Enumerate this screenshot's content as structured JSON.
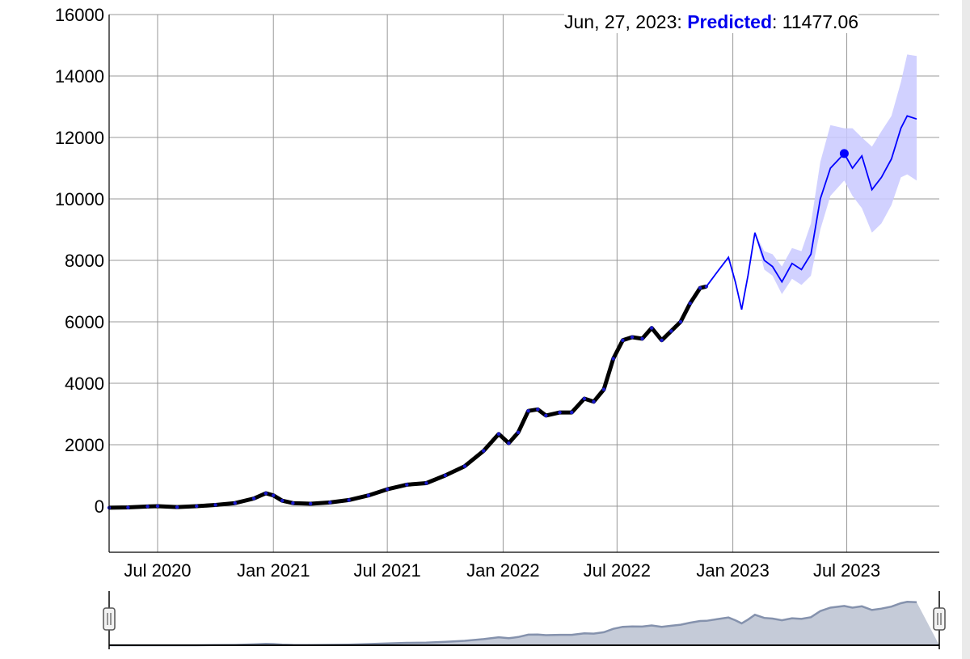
{
  "tooltip": {
    "date": "Jun, 27, 2023",
    "series_label": "Predicted",
    "value": "11477.06",
    "series_color": "#0000ee"
  },
  "colors": {
    "observed_line": "#000000",
    "observed_points": "#1a1acc",
    "predicted_line": "#0000ff",
    "interval_band": "#c9c9ff",
    "grid": "#999999",
    "navigator_fill": "#c5cbd8",
    "navigator_line": "#8592ad"
  },
  "chart_data": {
    "type": "line",
    "title": "",
    "xlabel": "",
    "ylabel": "",
    "x_range": [
      "2020-04-15",
      "2023-11-25"
    ],
    "ylim": [
      -1500,
      16000
    ],
    "y_ticks": [
      0,
      2000,
      4000,
      6000,
      8000,
      10000,
      12000,
      14000,
      16000
    ],
    "x_ticks": [
      {
        "date": "2020-07-01",
        "label": "Jul 2020"
      },
      {
        "date": "2021-01-01",
        "label": "Jan 2021"
      },
      {
        "date": "2021-07-01",
        "label": "Jul 2021"
      },
      {
        "date": "2022-01-01",
        "label": "Jan 2022"
      },
      {
        "date": "2022-07-01",
        "label": "Jul 2022"
      },
      {
        "date": "2023-01-01",
        "label": "Jan 2023"
      },
      {
        "date": "2023-07-01",
        "label": "Jul 2023"
      }
    ],
    "grid": true,
    "highlight_point": {
      "x": "2023-06-27",
      "y": 11477.06
    },
    "series": [
      {
        "kind": "observed",
        "points": [
          [
            "2020-04-15",
            -50
          ],
          [
            "2020-05-15",
            -40
          ],
          [
            "2020-06-15",
            -10
          ],
          [
            "2020-07-01",
            0
          ],
          [
            "2020-08-01",
            -30
          ],
          [
            "2020-09-01",
            0
          ],
          [
            "2020-10-01",
            40
          ],
          [
            "2020-11-01",
            100
          ],
          [
            "2020-12-01",
            250
          ],
          [
            "2020-12-20",
            420
          ],
          [
            "2021-01-01",
            350
          ],
          [
            "2021-01-15",
            180
          ],
          [
            "2021-02-01",
            100
          ],
          [
            "2021-03-01",
            80
          ],
          [
            "2021-04-01",
            120
          ],
          [
            "2021-05-01",
            200
          ],
          [
            "2021-06-01",
            350
          ],
          [
            "2021-07-01",
            550
          ],
          [
            "2021-08-01",
            700
          ],
          [
            "2021-09-01",
            750
          ],
          [
            "2021-10-01",
            1000
          ],
          [
            "2021-11-01",
            1300
          ],
          [
            "2021-12-01",
            1800
          ],
          [
            "2021-12-25",
            2350
          ],
          [
            "2022-01-10",
            2050
          ],
          [
            "2022-01-25",
            2400
          ],
          [
            "2022-02-10",
            3100
          ],
          [
            "2022-02-25",
            3150
          ],
          [
            "2022-03-10",
            2950
          ],
          [
            "2022-04-01",
            3050
          ],
          [
            "2022-04-20",
            3050
          ],
          [
            "2022-05-10",
            3500
          ],
          [
            "2022-05-25",
            3400
          ],
          [
            "2022-06-10",
            3800
          ],
          [
            "2022-06-25",
            4800
          ],
          [
            "2022-07-10",
            5400
          ],
          [
            "2022-07-25",
            5500
          ],
          [
            "2022-08-10",
            5450
          ],
          [
            "2022-08-25",
            5800
          ],
          [
            "2022-09-10",
            5400
          ],
          [
            "2022-09-25",
            5700
          ],
          [
            "2022-10-10",
            6000
          ],
          [
            "2022-10-25",
            6600
          ],
          [
            "2022-11-10",
            7100
          ],
          [
            "2022-11-20",
            7150
          ]
        ]
      },
      {
        "kind": "predicted",
        "points": [
          [
            "2022-11-20",
            7150
          ],
          [
            "2022-12-10",
            7700
          ],
          [
            "2022-12-25",
            8100
          ],
          [
            "2023-01-05",
            7300
          ],
          [
            "2023-01-15",
            6400
          ],
          [
            "2023-01-25",
            7500
          ],
          [
            "2023-02-05",
            8900
          ],
          [
            "2023-02-20",
            8000
          ],
          [
            "2023-03-05",
            7800
          ],
          [
            "2023-03-20",
            7300
          ],
          [
            "2023-04-05",
            7900
          ],
          [
            "2023-04-20",
            7700
          ],
          [
            "2023-05-05",
            8200
          ],
          [
            "2023-05-20",
            10000
          ],
          [
            "2023-06-05",
            11000
          ],
          [
            "2023-06-27",
            11477.06
          ],
          [
            "2023-07-10",
            11000
          ],
          [
            "2023-07-25",
            11400
          ],
          [
            "2023-08-10",
            10300
          ],
          [
            "2023-08-25",
            10700
          ],
          [
            "2023-09-10",
            11300
          ],
          [
            "2023-09-25",
            12300
          ],
          [
            "2023-10-05",
            12700
          ],
          [
            "2023-10-20",
            12600
          ]
        ],
        "upper": [
          [
            "2022-11-20",
            7150
          ],
          [
            "2022-12-10",
            7700
          ],
          [
            "2022-12-25",
            8100
          ],
          [
            "2023-01-05",
            7300
          ],
          [
            "2023-01-15",
            6400
          ],
          [
            "2023-01-25",
            7500
          ],
          [
            "2023-02-05",
            8900
          ],
          [
            "2023-02-20",
            8300
          ],
          [
            "2023-03-05",
            8200
          ],
          [
            "2023-03-20",
            7800
          ],
          [
            "2023-04-05",
            8400
          ],
          [
            "2023-04-20",
            8300
          ],
          [
            "2023-05-05",
            9200
          ],
          [
            "2023-05-20",
            11200
          ],
          [
            "2023-06-05",
            12400
          ],
          [
            "2023-06-27",
            12300
          ],
          [
            "2023-07-10",
            12300
          ],
          [
            "2023-07-25",
            12000
          ],
          [
            "2023-08-10",
            11700
          ],
          [
            "2023-08-25",
            12200
          ],
          [
            "2023-09-10",
            12700
          ],
          [
            "2023-09-25",
            13800
          ],
          [
            "2023-10-05",
            14700
          ],
          [
            "2023-10-20",
            14650
          ]
        ],
        "lower": [
          [
            "2022-11-20",
            7150
          ],
          [
            "2022-12-10",
            7700
          ],
          [
            "2022-12-25",
            8100
          ],
          [
            "2023-01-05",
            7300
          ],
          [
            "2023-01-15",
            6400
          ],
          [
            "2023-01-25",
            7500
          ],
          [
            "2023-02-05",
            8900
          ],
          [
            "2023-02-20",
            7700
          ],
          [
            "2023-03-05",
            7500
          ],
          [
            "2023-03-20",
            6900
          ],
          [
            "2023-04-05",
            7400
          ],
          [
            "2023-04-20",
            7200
          ],
          [
            "2023-05-05",
            7500
          ],
          [
            "2023-05-20",
            9000
          ],
          [
            "2023-06-05",
            10100
          ],
          [
            "2023-06-27",
            10600
          ],
          [
            "2023-07-10",
            10100
          ],
          [
            "2023-07-25",
            9700
          ],
          [
            "2023-08-10",
            8900
          ],
          [
            "2023-08-25",
            9200
          ],
          [
            "2023-09-10",
            9800
          ],
          [
            "2023-09-25",
            10700
          ],
          [
            "2023-10-05",
            10800
          ],
          [
            "2023-10-20",
            10600
          ]
        ]
      }
    ]
  }
}
